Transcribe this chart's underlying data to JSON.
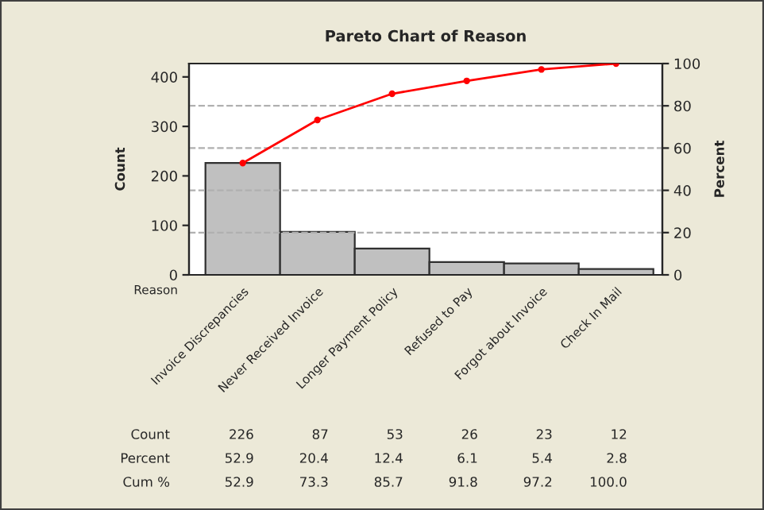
{
  "chart_data": {
    "type": "bar",
    "title": "Pareto Chart of Reason",
    "xlabel": "Reason",
    "ylabel": "Count",
    "y2label": "Percent",
    "categories": [
      "Invoice Discrepancies",
      "Never Received Invoice",
      "Longer Payment Policy",
      "Refused to Pay",
      "Forgot about Invoice",
      "Check In Mail"
    ],
    "series": [
      {
        "color": "#c0c0c0",
        "values": [
          226,
          87,
          53,
          26,
          23,
          12
        ],
        "value_labels": [
          "226",
          "87",
          "53",
          "26",
          "23",
          "12"
        ]
      },
      {
        "type": "line",
        "axis": "y2",
        "color": "#ff0000",
        "values": [
          52.9,
          73.3,
          85.7,
          91.8,
          97.2,
          100.0
        ],
        "value_labels": [
          "52.9",
          "73.3",
          "85.7",
          "91.8",
          "97.2",
          "100.0"
        ]
      }
    ],
    "annotations": [
      "Count",
      "Percent",
      "52.9",
      "20.4",
      "12.4",
      "6.1",
      "5.4",
      "2.8",
      "Cum %"
    ],
    "ylim": [
      0,
      427
    ],
    "yticks": [
      0,
      100,
      200,
      300,
      400
    ],
    "y2lim": [
      0,
      100
    ],
    "y2ticks": [
      0,
      20,
      40,
      60,
      80,
      100
    ],
    "grid": "y2",
    "marker": "circle",
    "line_style": "solid"
  }
}
